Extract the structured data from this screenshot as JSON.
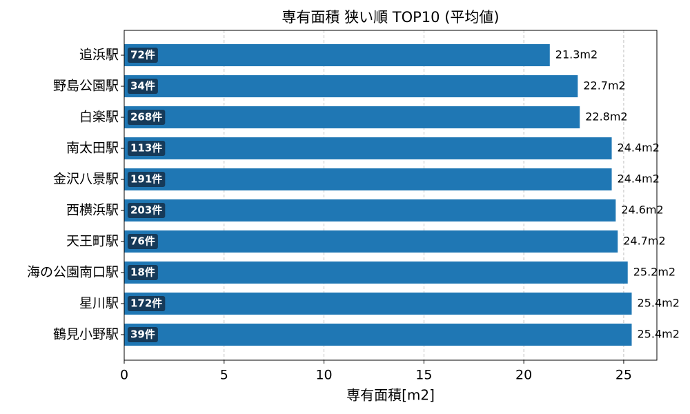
{
  "chart_data": {
    "type": "barh",
    "title": "専有面積 狭い順 TOP10 (平均値)",
    "x_label": "専有面積[m2]",
    "categories": [
      "追浜駅",
      "野島公園駅",
      "白楽駅",
      "南太田駅",
      "金沢八景駅",
      "西横浜駅",
      "天王町駅",
      "海の公園南口駅",
      "星川駅",
      "鶴見小野駅"
    ],
    "values": [
      21.3,
      22.7,
      22.8,
      24.4,
      24.4,
      24.6,
      24.7,
      25.2,
      25.4,
      25.4
    ],
    "value_labels": [
      "21.3m2",
      "22.7m2",
      "22.8m2",
      "24.4m2",
      "24.4m2",
      "24.6m2",
      "24.7m2",
      "25.2m2",
      "25.4m2",
      "25.4m2"
    ],
    "count_labels": [
      "72件",
      "34件",
      "268件",
      "113件",
      "191件",
      "203件",
      "76件",
      "18件",
      "172件",
      "39件"
    ],
    "color": "#1f77b4",
    "count_box_color": "#163a59",
    "xlim": [
      0,
      26.66
    ],
    "xticks": [
      0,
      5,
      10,
      15,
      20,
      25
    ],
    "grid": true
  }
}
